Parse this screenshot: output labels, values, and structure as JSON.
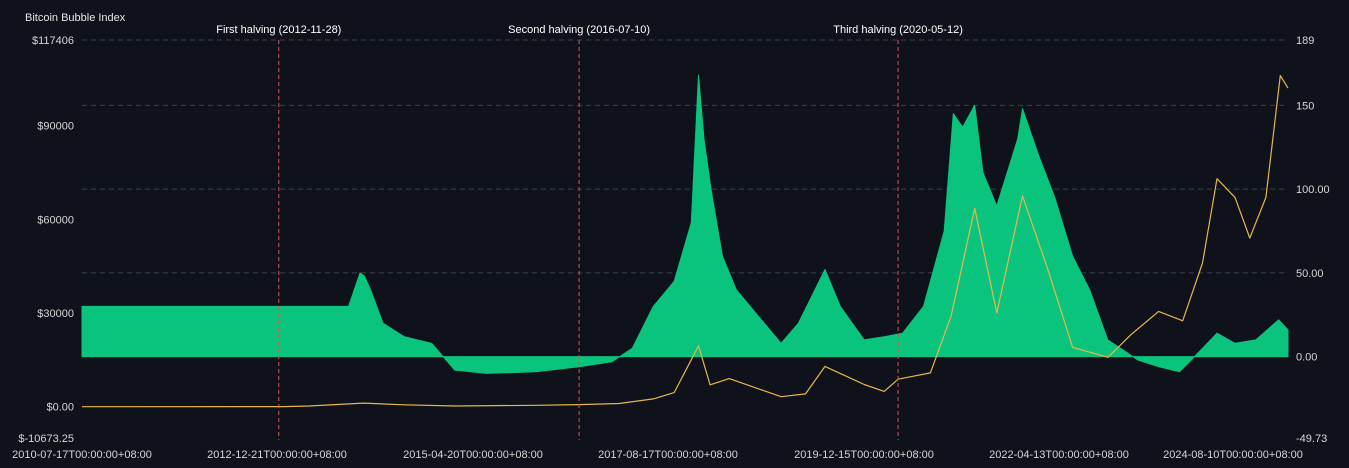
{
  "chart_data": {
    "type": "area",
    "title": "Bitcoin Bubble Index",
    "x_tick_labels": [
      "2010-07-17T00:00:00+08:00",
      "2012-12-21T00:00:00+08:00",
      "2015-04-20T00:00:00+08:00",
      "2017-08-17T00:00:00+08:00",
      "2019-12-15T00:00:00+08:00",
      "2022-04-13T00:00:00+08:00",
      "2024-08-10T00:00:00+08:00"
    ],
    "xlim": [
      "2010-07-17",
      "2025-01-20"
    ],
    "left_axis": {
      "ylim": [
        -10673.25,
        117406
      ],
      "tick_labels": [
        "$-10673.25",
        "$0.00",
        "$30000",
        "$60000",
        "$90000",
        "$117406"
      ],
      "tick_values": [
        -10673.25,
        0,
        30000,
        60000,
        90000,
        117406
      ]
    },
    "right_axis": {
      "ylim": [
        -49.73,
        189
      ],
      "tick_labels": [
        "-49.73",
        "0.00",
        "50.00",
        "100.00",
        "150",
        "189"
      ],
      "tick_values": [
        -49.73,
        0,
        50,
        100,
        150,
        189
      ]
    },
    "grid": true,
    "annotations": [
      {
        "date": "2012-11-28",
        "label": "First halving (2012-11-28)"
      },
      {
        "date": "2016-07-10",
        "label": "Second halving (2016-07-10)"
      },
      {
        "date": "2020-05-12",
        "label": "Third halving (2020-05-12)"
      }
    ],
    "series": [
      {
        "axis": "right",
        "style": "area",
        "color": "#0ac47e",
        "points": [
          [
            "2010-07-17",
            30
          ],
          [
            "2012-12-21",
            30
          ],
          [
            "2013-10-01",
            30
          ],
          [
            "2013-11-20",
            50
          ],
          [
            "2013-12-10",
            48
          ],
          [
            "2014-01-05",
            40
          ],
          [
            "2014-03-01",
            20
          ],
          [
            "2014-06-01",
            12
          ],
          [
            "2014-10-01",
            8
          ],
          [
            "2015-01-10",
            -8
          ],
          [
            "2015-06-01",
            -10
          ],
          [
            "2016-01-01",
            -9
          ],
          [
            "2016-07-10",
            -6
          ],
          [
            "2016-12-01",
            -3
          ],
          [
            "2017-03-01",
            5
          ],
          [
            "2017-06-01",
            30
          ],
          [
            "2017-09-01",
            45
          ],
          [
            "2017-11-15",
            80
          ],
          [
            "2017-12-17",
            168
          ],
          [
            "2018-01-10",
            130
          ],
          [
            "2018-02-10",
            100
          ],
          [
            "2018-04-01",
            60
          ],
          [
            "2018-06-01",
            40
          ],
          [
            "2018-09-01",
            25
          ],
          [
            "2018-12-15",
            8
          ],
          [
            "2019-03-01",
            20
          ],
          [
            "2019-06-26",
            52
          ],
          [
            "2019-09-01",
            30
          ],
          [
            "2019-12-15",
            10
          ],
          [
            "2020-03-15",
            12
          ],
          [
            "2020-06-01",
            14
          ],
          [
            "2020-09-01",
            30
          ],
          [
            "2020-12-01",
            75
          ],
          [
            "2021-01-10",
            145
          ],
          [
            "2021-02-20",
            137
          ],
          [
            "2021-04-14",
            150
          ],
          [
            "2021-05-20",
            110
          ],
          [
            "2021-07-20",
            90
          ],
          [
            "2021-10-20",
            130
          ],
          [
            "2021-11-10",
            148
          ],
          [
            "2022-01-20",
            120
          ],
          [
            "2022-04-01",
            95
          ],
          [
            "2022-06-18",
            60
          ],
          [
            "2022-09-01",
            40
          ],
          [
            "2022-11-20",
            10
          ],
          [
            "2023-01-15",
            5
          ],
          [
            "2023-04-01",
            -2
          ],
          [
            "2023-07-01",
            -6
          ],
          [
            "2023-10-01",
            -9
          ],
          [
            "2024-01-10",
            5
          ],
          [
            "2024-03-14",
            14
          ],
          [
            "2024-06-01",
            8
          ],
          [
            "2024-09-01",
            10
          ],
          [
            "2024-12-10",
            22
          ],
          [
            "2025-01-20",
            16
          ]
        ]
      },
      {
        "axis": "left",
        "style": "line",
        "color": "#e8b64a",
        "points": [
          [
            "2010-07-17",
            0
          ],
          [
            "2012-12-21",
            13
          ],
          [
            "2013-04-10",
            200
          ],
          [
            "2013-12-04",
            1150
          ],
          [
            "2014-06-01",
            600
          ],
          [
            "2015-01-14",
            200
          ],
          [
            "2016-01-01",
            430
          ],
          [
            "2016-07-10",
            650
          ],
          [
            "2017-01-01",
            1000
          ],
          [
            "2017-06-01",
            2500
          ],
          [
            "2017-09-01",
            4500
          ],
          [
            "2017-12-17",
            19500
          ],
          [
            "2018-02-06",
            7000
          ],
          [
            "2018-05-01",
            9000
          ],
          [
            "2018-12-15",
            3200
          ],
          [
            "2019-04-01",
            4100
          ],
          [
            "2019-06-26",
            12900
          ],
          [
            "2019-12-15",
            7100
          ],
          [
            "2020-03-12",
            4900
          ],
          [
            "2020-05-12",
            8800
          ],
          [
            "2020-10-01",
            10800
          ],
          [
            "2020-12-31",
            29000
          ],
          [
            "2021-04-14",
            63500
          ],
          [
            "2021-07-20",
            30000
          ],
          [
            "2021-11-10",
            67500
          ],
          [
            "2022-03-01",
            44000
          ],
          [
            "2022-06-18",
            19000
          ],
          [
            "2022-11-21",
            15800
          ],
          [
            "2023-03-01",
            23000
          ],
          [
            "2023-07-01",
            30500
          ],
          [
            "2023-10-15",
            27500
          ],
          [
            "2024-01-10",
            46000
          ],
          [
            "2024-03-14",
            73000
          ],
          [
            "2024-06-01",
            67000
          ],
          [
            "2024-08-05",
            54000
          ],
          [
            "2024-10-15",
            67000
          ],
          [
            "2024-12-17",
            106000
          ],
          [
            "2025-01-20",
            102000
          ]
        ]
      }
    ]
  }
}
